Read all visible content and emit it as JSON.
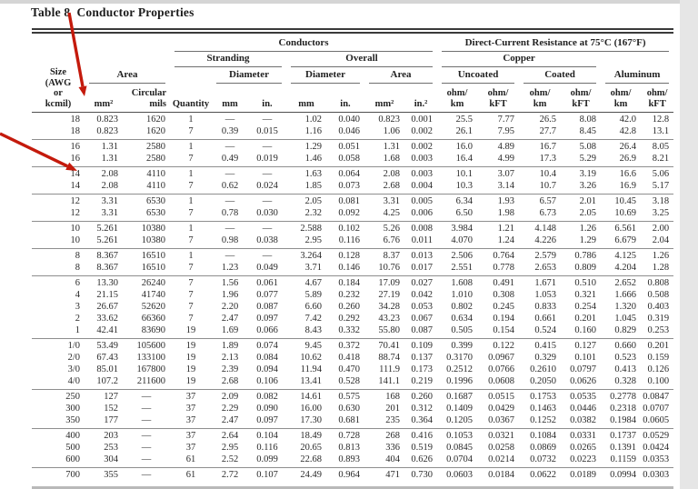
{
  "title": "Table 8  Conductor Properties",
  "colors": {
    "arrow": "#c41a0c",
    "rule_dark": "#3a3a3a",
    "rule_light": "#8e8e8e",
    "page_margin": "#e6e6e6"
  },
  "header": {
    "conductors": "Conductors",
    "dc_resistance": "Direct-Current Resistance at 75°C (167°F)",
    "stranding": "Stranding",
    "overall": "Overall",
    "copper": "Copper",
    "size_label": "Size\n(AWG\nor\nkcmil)",
    "area_label": "Area",
    "diameter_label": "Diameter",
    "diameter2_label": "Diameter",
    "overall_area_label": "Area",
    "uncoated": "Uncoated",
    "coated": "Coated",
    "aluminum": "Aluminum",
    "units": [
      "mm²",
      "Circular\nmils",
      "Quantity",
      "mm",
      "in.",
      "mm",
      "in.",
      "mm²",
      "in.²",
      "ohm/\nkm",
      "ohm/\nkFT",
      "ohm/\nkm",
      "ohm/\nkFT",
      "ohm/\nkm",
      "ohm/\nkFT"
    ]
  },
  "groups": [
    {
      "rows": [
        [
          "18",
          "0.823",
          "1620",
          "1",
          "—",
          "—",
          "1.02",
          "0.040",
          "0.823",
          "0.001",
          "25.5",
          "7.77",
          "26.5",
          "8.08",
          "42.0",
          "12.8"
        ],
        [
          "18",
          "0.823",
          "1620",
          "7",
          "0.39",
          "0.015",
          "1.16",
          "0.046",
          "1.06",
          "0.002",
          "26.1",
          "7.95",
          "27.7",
          "8.45",
          "42.8",
          "13.1"
        ]
      ]
    },
    {
      "rows": [
        [
          "16",
          "1.31",
          "2580",
          "1",
          "—",
          "—",
          "1.29",
          "0.051",
          "1.31",
          "0.002",
          "16.0",
          "4.89",
          "16.7",
          "5.08",
          "26.4",
          "8.05"
        ],
        [
          "16",
          "1.31",
          "2580",
          "7",
          "0.49",
          "0.019",
          "1.46",
          "0.058",
          "1.68",
          "0.003",
          "16.4",
          "4.99",
          "17.3",
          "5.29",
          "26.9",
          "8.21"
        ]
      ]
    },
    {
      "rows": [
        [
          "14",
          "2.08",
          "4110",
          "1",
          "—",
          "—",
          "1.63",
          "0.064",
          "2.08",
          "0.003",
          "10.1",
          "3.07",
          "10.4",
          "3.19",
          "16.6",
          "5.06"
        ],
        [
          "14",
          "2.08",
          "4110",
          "7",
          "0.62",
          "0.024",
          "1.85",
          "0.073",
          "2.68",
          "0.004",
          "10.3",
          "3.14",
          "10.7",
          "3.26",
          "16.9",
          "5.17"
        ]
      ]
    },
    {
      "rows": [
        [
          "12",
          "3.31",
          "6530",
          "1",
          "—",
          "—",
          "2.05",
          "0.081",
          "3.31",
          "0.005",
          "6.34",
          "1.93",
          "6.57",
          "2.01",
          "10.45",
          "3.18"
        ],
        [
          "12",
          "3.31",
          "6530",
          "7",
          "0.78",
          "0.030",
          "2.32",
          "0.092",
          "4.25",
          "0.006",
          "6.50",
          "1.98",
          "6.73",
          "2.05",
          "10.69",
          "3.25"
        ]
      ]
    },
    {
      "rows": [
        [
          "10",
          "5.261",
          "10380",
          "1",
          "—",
          "—",
          "2.588",
          "0.102",
          "5.26",
          "0.008",
          "3.984",
          "1.21",
          "4.148",
          "1.26",
          "6.561",
          "2.00"
        ],
        [
          "10",
          "5.261",
          "10380",
          "7",
          "0.98",
          "0.038",
          "2.95",
          "0.116",
          "6.76",
          "0.011",
          "4.070",
          "1.24",
          "4.226",
          "1.29",
          "6.679",
          "2.04"
        ]
      ]
    },
    {
      "rows": [
        [
          "8",
          "8.367",
          "16510",
          "1",
          "—",
          "—",
          "3.264",
          "0.128",
          "8.37",
          "0.013",
          "2.506",
          "0.764",
          "2.579",
          "0.786",
          "4.125",
          "1.26"
        ],
        [
          "8",
          "8.367",
          "16510",
          "7",
          "1.23",
          "0.049",
          "3.71",
          "0.146",
          "10.76",
          "0.017",
          "2.551",
          "0.778",
          "2.653",
          "0.809",
          "4.204",
          "1.28"
        ]
      ]
    },
    {
      "rows": [
        [
          "6",
          "13.30",
          "26240",
          "7",
          "1.56",
          "0.061",
          "4.67",
          "0.184",
          "17.09",
          "0.027",
          "1.608",
          "0.491",
          "1.671",
          "0.510",
          "2.652",
          "0.808"
        ],
        [
          "4",
          "21.15",
          "41740",
          "7",
          "1.96",
          "0.077",
          "5.89",
          "0.232",
          "27.19",
          "0.042",
          "1.010",
          "0.308",
          "1.053",
          "0.321",
          "1.666",
          "0.508"
        ],
        [
          "3",
          "26.67",
          "52620",
          "7",
          "2.20",
          "0.087",
          "6.60",
          "0.260",
          "34.28",
          "0.053",
          "0.802",
          "0.245",
          "0.833",
          "0.254",
          "1.320",
          "0.403"
        ],
        [
          "2",
          "33.62",
          "66360",
          "7",
          "2.47",
          "0.097",
          "7.42",
          "0.292",
          "43.23",
          "0.067",
          "0.634",
          "0.194",
          "0.661",
          "0.201",
          "1.045",
          "0.319"
        ],
        [
          "1",
          "42.41",
          "83690",
          "19",
          "1.69",
          "0.066",
          "8.43",
          "0.332",
          "55.80",
          "0.087",
          "0.505",
          "0.154",
          "0.524",
          "0.160",
          "0.829",
          "0.253"
        ]
      ]
    },
    {
      "rows": [
        [
          "1/0",
          "53.49",
          "105600",
          "19",
          "1.89",
          "0.074",
          "9.45",
          "0.372",
          "70.41",
          "0.109",
          "0.399",
          "0.122",
          "0.415",
          "0.127",
          "0.660",
          "0.201"
        ],
        [
          "2/0",
          "67.43",
          "133100",
          "19",
          "2.13",
          "0.084",
          "10.62",
          "0.418",
          "88.74",
          "0.137",
          "0.3170",
          "0.0967",
          "0.329",
          "0.101",
          "0.523",
          "0.159"
        ],
        [
          "3/0",
          "85.01",
          "167800",
          "19",
          "2.39",
          "0.094",
          "11.94",
          "0.470",
          "111.9",
          "0.173",
          "0.2512",
          "0.0766",
          "0.2610",
          "0.0797",
          "0.413",
          "0.126"
        ],
        [
          "4/0",
          "107.2",
          "211600",
          "19",
          "2.68",
          "0.106",
          "13.41",
          "0.528",
          "141.1",
          "0.219",
          "0.1996",
          "0.0608",
          "0.2050",
          "0.0626",
          "0.328",
          "0.100"
        ]
      ]
    },
    {
      "rows": [
        [
          "250",
          "127",
          "—",
          "37",
          "2.09",
          "0.082",
          "14.61",
          "0.575",
          "168",
          "0.260",
          "0.1687",
          "0.0515",
          "0.1753",
          "0.0535",
          "0.2778",
          "0.0847"
        ],
        [
          "300",
          "152",
          "—",
          "37",
          "2.29",
          "0.090",
          "16.00",
          "0.630",
          "201",
          "0.312",
          "0.1409",
          "0.0429",
          "0.1463",
          "0.0446",
          "0.2318",
          "0.0707"
        ],
        [
          "350",
          "177",
          "—",
          "37",
          "2.47",
          "0.097",
          "17.30",
          "0.681",
          "235",
          "0.364",
          "0.1205",
          "0.0367",
          "0.1252",
          "0.0382",
          "0.1984",
          "0.0605"
        ]
      ]
    },
    {
      "rows": [
        [
          "400",
          "203",
          "—",
          "37",
          "2.64",
          "0.104",
          "18.49",
          "0.728",
          "268",
          "0.416",
          "0.1053",
          "0.0321",
          "0.1084",
          "0.0331",
          "0.1737",
          "0.0529"
        ],
        [
          "500",
          "253",
          "—",
          "37",
          "2.95",
          "0.116",
          "20.65",
          "0.813",
          "336",
          "0.519",
          "0.0845",
          "0.0258",
          "0.0869",
          "0.0265",
          "0.1391",
          "0.0424"
        ],
        [
          "600",
          "304",
          "—",
          "61",
          "2.52",
          "0.099",
          "22.68",
          "0.893",
          "404",
          "0.626",
          "0.0704",
          "0.0214",
          "0.0732",
          "0.0223",
          "0.1159",
          "0.0353"
        ]
      ]
    },
    {
      "clipped": true,
      "rows": [
        [
          "700",
          "355",
          "—",
          "61",
          "2.72",
          "0.107",
          "24.49",
          "0.964",
          "471",
          "0.730",
          "0.0603",
          "0.0184",
          "0.0622",
          "0.0189",
          "0.0994",
          "0.0303"
        ]
      ]
    }
  ]
}
